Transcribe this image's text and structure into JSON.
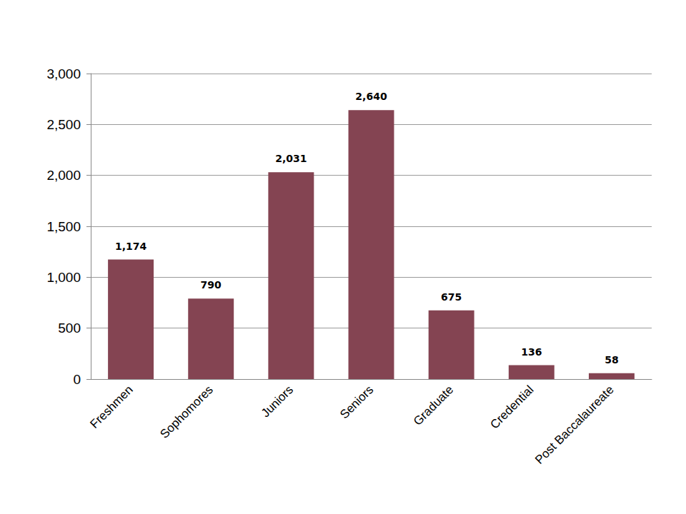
{
  "chart_data": {
    "type": "bar",
    "categories": [
      "Freshmen",
      "Sophomores",
      "Juniors",
      "Seniors",
      "Graduate",
      "Credential",
      "Post Baccalaureate"
    ],
    "values": [
      1174,
      790,
      2031,
      2640,
      675,
      136,
      58
    ],
    "value_labels": [
      "1,174",
      "790",
      "2,031",
      "2,640",
      "675",
      "136",
      "58"
    ],
    "color": "#844452",
    "ylim": [
      0,
      3000
    ],
    "yticks": [
      0,
      500,
      {
        "value": 1000,
        "label": "1,000"
      },
      {
        "value": 1500,
        "label": "1,500"
      },
      {
        "value": 2000,
        "label": "2,000"
      },
      {
        "value": 2500,
        "label": "2,500"
      },
      {
        "value": 3000,
        "label": "3,000"
      }
    ],
    "grid": true,
    "data_labels": true
  }
}
